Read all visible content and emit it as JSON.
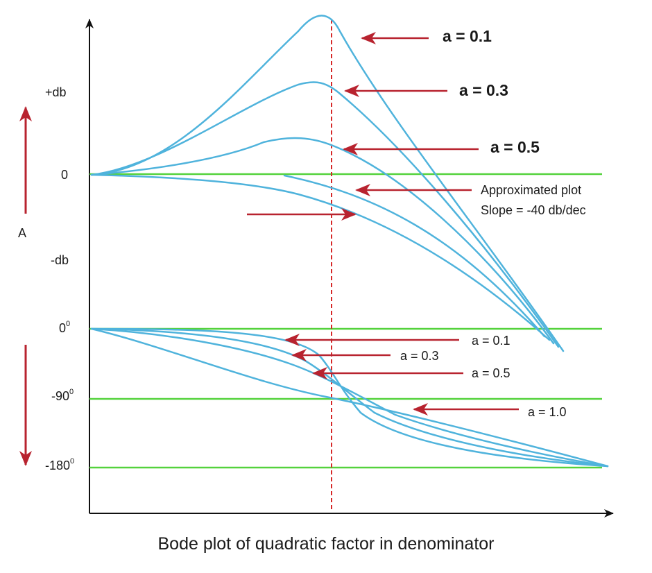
{
  "caption": "Bode plot of quadratic factor in denominator",
  "y_labels": {
    "plus_db": "+db",
    "zero": "0",
    "minus_db": "-db",
    "amplitude": "A",
    "phase_0": "0",
    "phase_0_sup": "0",
    "phase_90": "-90",
    "phase_90_sup": "0",
    "phase_180": "-180",
    "phase_180_sup": "0"
  },
  "magnitude_annotations": {
    "a01": "a = 0.1",
    "a03": "a = 0.3",
    "a05": "a = 0.5",
    "approx_line1": "Approximated plot",
    "approx_line2": "Slope = -40 db/dec"
  },
  "phase_annotations": {
    "a01": "a = 0.1",
    "a03": "a = 0.3",
    "a05": "a = 0.5",
    "a10": "a = 1.0"
  },
  "colors": {
    "curve": "#4fb3dc",
    "reference_line": "#54d23c",
    "arrow": "#b8232f",
    "axis": "#111111",
    "corner_marker": "#d62828"
  },
  "chart_data": [
    {
      "type": "line",
      "panel": "magnitude",
      "scale": "qualitative",
      "y_ticks": [
        "+db",
        "0",
        "-db"
      ],
      "reference_line": "0",
      "series": [
        {
          "name": "a = 0.1",
          "peak": "highest resonant peak at corner frequency"
        },
        {
          "name": "a = 0.3",
          "peak": "medium resonant peak"
        },
        {
          "name": "a = 0.5",
          "peak": "small resonant peak"
        },
        {
          "name": "Approximated plot",
          "slope_db_per_decade": -40
        }
      ],
      "marker": "corner frequency (dashed vertical line)"
    },
    {
      "type": "line",
      "panel": "phase",
      "scale": "qualitative",
      "y_ticks": [
        "0°",
        "-90°",
        "-180°"
      ],
      "reference_lines": [
        "0°",
        "-90°",
        "-180°"
      ],
      "series": [
        {
          "name": "a = 0.1"
        },
        {
          "name": "a = 0.3"
        },
        {
          "name": "a = 0.5"
        },
        {
          "name": "a = 1.0"
        }
      ]
    }
  ]
}
